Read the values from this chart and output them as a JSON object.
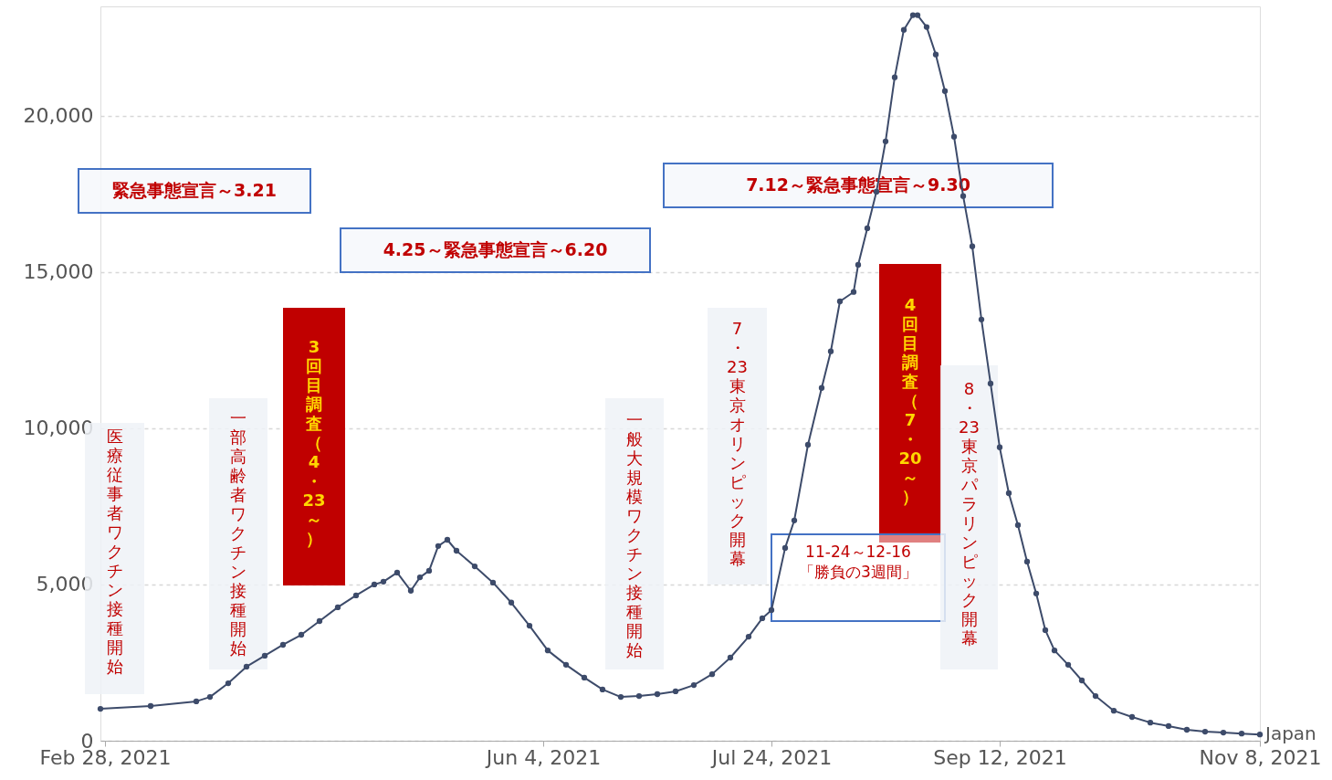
{
  "chart_data": {
    "type": "line",
    "x": [
      "2021-02-27",
      "2021-03-10",
      "2021-03-20",
      "2021-03-23",
      "2021-03-27",
      "2021-03-31",
      "2021-04-04",
      "2021-04-08",
      "2021-04-12",
      "2021-04-16",
      "2021-04-20",
      "2021-04-24",
      "2021-04-28",
      "2021-04-30",
      "2021-05-03",
      "2021-05-06",
      "2021-05-08",
      "2021-05-10",
      "2021-05-12",
      "2021-05-14",
      "2021-05-16",
      "2021-05-20",
      "2021-05-24",
      "2021-05-28",
      "2021-06-01",
      "2021-06-05",
      "2021-06-09",
      "2021-06-13",
      "2021-06-17",
      "2021-06-21",
      "2021-06-25",
      "2021-06-29",
      "2021-07-03",
      "2021-07-07",
      "2021-07-11",
      "2021-07-15",
      "2021-07-19",
      "2021-07-22",
      "2021-07-24",
      "2021-07-27",
      "2021-07-29",
      "2021-08-01",
      "2021-08-04",
      "2021-08-06",
      "2021-08-08",
      "2021-08-11",
      "2021-08-12",
      "2021-08-14",
      "2021-08-16",
      "2021-08-18",
      "2021-08-20",
      "2021-08-22",
      "2021-08-24",
      "2021-08-25",
      "2021-08-27",
      "2021-08-29",
      "2021-08-31",
      "2021-09-02",
      "2021-09-04",
      "2021-09-06",
      "2021-09-08",
      "2021-09-10",
      "2021-09-12",
      "2021-09-14",
      "2021-09-16",
      "2021-09-18",
      "2021-09-20",
      "2021-09-22",
      "2021-09-24",
      "2021-09-27",
      "2021-09-30",
      "2021-10-03",
      "2021-10-07",
      "2021-10-11",
      "2021-10-15",
      "2021-10-19",
      "2021-10-23",
      "2021-10-27",
      "2021-10-31",
      "2021-11-04",
      "2021-11-08"
    ],
    "series": [
      {
        "name": "Japan",
        "color": "#3d4b6a",
        "values": [
          1020,
          1110,
          1260,
          1400,
          1840,
          2370,
          2720,
          3070,
          3390,
          3830,
          4270,
          4650,
          5000,
          5090,
          5380,
          4800,
          5230,
          5440,
          6230,
          6430,
          6080,
          5580,
          5060,
          4420,
          3680,
          2890,
          2430,
          2020,
          1640,
          1400,
          1430,
          1490,
          1580,
          1780,
          2130,
          2660,
          3330,
          3920,
          4180,
          6170,
          7050,
          9470,
          11290,
          12460,
          14060,
          14360,
          15230,
          16400,
          17570,
          19180,
          21230,
          22750,
          23220,
          23220,
          22840,
          21960,
          20790,
          19330,
          17430,
          15820,
          13480,
          11430,
          9390,
          7920,
          6900,
          5730,
          4710,
          3540,
          2890,
          2430,
          1930,
          1430,
          960,
          760,
          580,
          470,
          350,
          290,
          260,
          230,
          200
        ]
      }
    ],
    "xlim": [
      "2021-02-27",
      "2021-11-08"
    ],
    "xticks": [
      {
        "value": "2021-02-28",
        "label": "Feb 28, 2021"
      },
      {
        "value": "2021-06-04",
        "label": "Jun 4, 2021"
      },
      {
        "value": "2021-07-24",
        "label": "Jul 24, 2021"
      },
      {
        "value": "2021-09-12",
        "label": "Sep 12, 2021"
      },
      {
        "value": "2021-11-08",
        "label": "Nov 8, 2021"
      }
    ],
    "ylim": [
      0,
      23500
    ],
    "yticks": [
      0,
      {
        "value": 5000,
        "label": "5,000"
      },
      {
        "value": 10000,
        "label": "10,000"
      },
      {
        "value": 15000,
        "label": "15,000"
      },
      {
        "value": 20000,
        "label": "20,000"
      }
    ],
    "grid": "y",
    "marker": "circle",
    "line_style": "solid",
    "annotations": [
      "緊急事態宣言～3.21",
      "4.25～緊急事態宣言～6.20",
      "7.12～緊急事態宣言～9.30",
      "医療従事者ワクチン接種開始",
      "一部高齢者ワクチン接種開始",
      "3回目調査（4・23～）",
      "一般大規模ワクチン接種開始",
      "7・23東京オリンピック開幕",
      "4回目調査（7・20～）",
      "11-24～12-16「勝負の3週間」",
      "8・23東京パラリンピック開幕"
    ]
  }
}
